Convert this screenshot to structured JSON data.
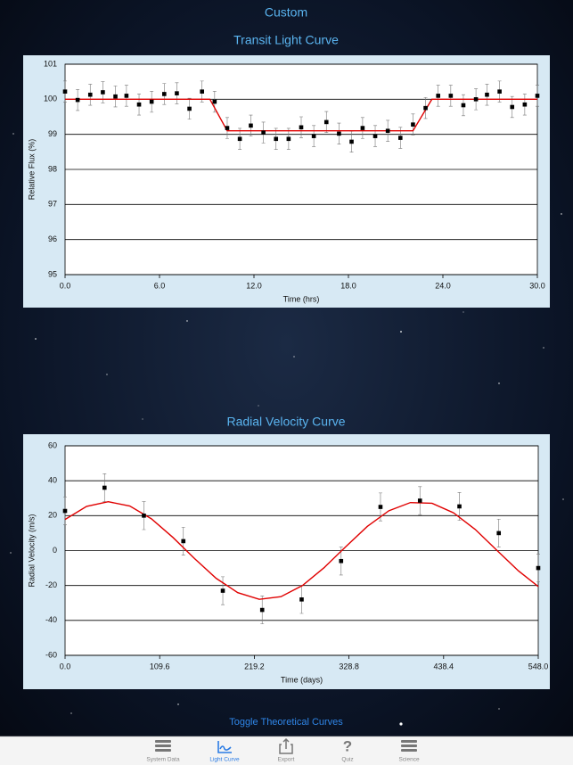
{
  "header": {
    "title": "Custom"
  },
  "chart_data": [
    {
      "type": "scatter",
      "title": "Transit Light Curve",
      "x_label": "Time (hrs)",
      "y_label": "Relative Flux (%)",
      "xlim": [
        0,
        30
      ],
      "xticks": [
        {
          "value": 0,
          "label": "0.0"
        },
        {
          "value": 6,
          "label": "6.0"
        },
        {
          "value": 12,
          "label": "12.0"
        },
        {
          "value": 18,
          "label": "18.0"
        },
        {
          "value": 24,
          "label": "24.0"
        },
        {
          "value": 30,
          "label": "30.0"
        }
      ],
      "ylim": [
        95,
        101
      ],
      "yticks": [
        95,
        96,
        97,
        98,
        99,
        100,
        101
      ],
      "grid": true,
      "points": {
        "color": "#000000",
        "x": [
          0,
          0.8,
          1.6,
          2.4,
          3.2,
          3.9,
          4.7,
          5.5,
          6.3,
          7.1,
          7.9,
          8.7,
          9.5,
          10.3,
          11.1,
          11.8,
          12.6,
          13.4,
          14.2,
          15.0,
          15.8,
          16.6,
          17.4,
          18.2,
          18.9,
          19.7,
          20.5,
          21.3,
          22.1,
          22.9,
          23.7,
          24.5,
          25.3,
          26.1,
          26.8,
          27.6,
          28.4,
          29.2,
          30.0
        ],
        "values": [
          100.22,
          99.98,
          100.13,
          100.2,
          100.08,
          100.1,
          99.85,
          99.93,
          100.15,
          100.17,
          99.73,
          100.22,
          99.93,
          99.18,
          98.87,
          99.25,
          99.05,
          98.87,
          98.87,
          99.2,
          98.95,
          99.35,
          99.02,
          98.79,
          99.18,
          98.95,
          99.1,
          98.9,
          99.28,
          99.75,
          100.1,
          100.1,
          99.83,
          100.0,
          100.13,
          100.22,
          99.78,
          99.85,
          100.1
        ],
        "errors": [
          0.3,
          0.3,
          0.3,
          0.3,
          0.3,
          0.3,
          0.3,
          0.3,
          0.3,
          0.3,
          0.3,
          0.3,
          0.3,
          0.3,
          0.3,
          0.3,
          0.3,
          0.3,
          0.3,
          0.3,
          0.3,
          0.3,
          0.3,
          0.3,
          0.3,
          0.3,
          0.3,
          0.3,
          0.3,
          0.3,
          0.3,
          0.3,
          0.3,
          0.3,
          0.3,
          0.3,
          0.3,
          0.3,
          0.3
        ]
      },
      "curve": {
        "color": "#e00000",
        "x": [
          0,
          9.2,
          10.3,
          22.1,
          23.3,
          30
        ],
        "values": [
          100,
          100,
          99.1,
          99.1,
          100,
          100
        ]
      }
    },
    {
      "type": "scatter",
      "title": "Radial Velocity Curve",
      "x_label": "Time (days)",
      "y_label": "Radial Velocity (m/s)",
      "xlim": [
        0,
        548
      ],
      "xticks": [
        {
          "value": 0,
          "label": "0.0"
        },
        109.6,
        219.2,
        328.8,
        438.4,
        {
          "value": 548,
          "label": "548.0"
        }
      ],
      "ylim": [
        -60,
        60
      ],
      "yticks": [
        -60,
        -40,
        -20,
        0,
        20,
        40,
        60
      ],
      "grid": true,
      "points": {
        "color": "#000000",
        "x": [
          0,
          45.7,
          91.3,
          137,
          182.7,
          228.3,
          274,
          319.7,
          365.3,
          411,
          456.7,
          502.3,
          548
        ],
        "values": [
          22.7,
          36,
          20,
          5.4,
          -23,
          -34,
          -28,
          -6,
          25,
          28.6,
          25.3,
          10,
          -10
        ],
        "errors": [
          8,
          8,
          8,
          8,
          8,
          8,
          8,
          8,
          8,
          8,
          8,
          8,
          8
        ]
      },
      "curve": {
        "color": "#e00000",
        "x": [
          0,
          25,
          50,
          75,
          100,
          125,
          150,
          175,
          200,
          225,
          250,
          275,
          300,
          325,
          350,
          375,
          400,
          425,
          450,
          475,
          500,
          525,
          548
        ],
        "values": [
          17.8,
          25.3,
          28.0,
          25.5,
          18.2,
          7.5,
          -4.6,
          -15.9,
          -24.1,
          -27.9,
          -26.4,
          -20.0,
          -9.8,
          2.2,
          13.8,
          22.8,
          27.5,
          27.1,
          21.6,
          12.1,
          0.2,
          -11.6,
          -20.6
        ]
      }
    }
  ],
  "toggle": "Toggle Theoretical Curves",
  "tabs": [
    "System Data",
    "Light Curve",
    "Export",
    "Quiz",
    "Science"
  ]
}
